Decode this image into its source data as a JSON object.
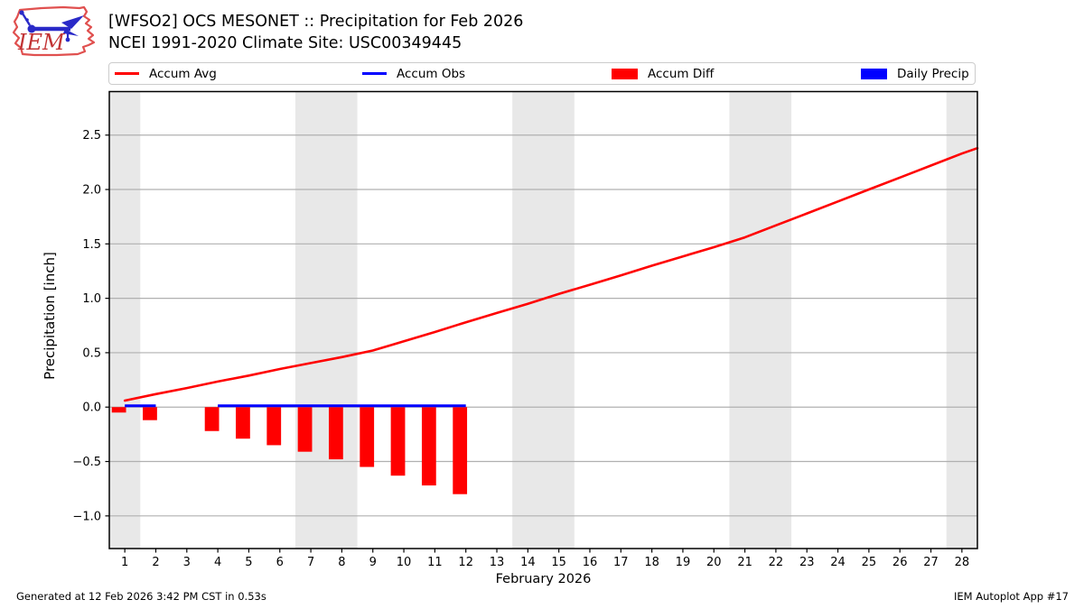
{
  "header": {
    "title_line1": "[WFSO2] OCS MESONET :: Precipitation for Feb 2026",
    "title_line2": "NCEI 1991-2020 Climate Site: USC00349445",
    "logo_text": "IEM",
    "logo_colors": {
      "outline": "#e0504f",
      "glyph": "#2a2ac8",
      "text": "#c23435"
    }
  },
  "legend": [
    {
      "label": "Accum Avg",
      "swatch": "line",
      "color": "#ff0000"
    },
    {
      "label": "Accum Obs",
      "swatch": "line",
      "color": "#0000ff"
    },
    {
      "label": "Accum Diff",
      "swatch": "patch",
      "color": "#ff0000"
    },
    {
      "label": "Daily Precip",
      "swatch": "patch",
      "color": "#0000ff"
    }
  ],
  "footer": {
    "left": "Generated at 12 Feb 2026 3:42 PM CST in 0.53s",
    "right": "IEM Autoplot App #17"
  },
  "chart_data": {
    "type": "line+bar",
    "title": "",
    "xlabel": "February 2026",
    "ylabel": "Precipitation [inch]",
    "xlim": [
      0.5,
      28.5
    ],
    "ylim": [
      -1.3,
      2.9
    ],
    "x_ticks": [
      1,
      2,
      3,
      4,
      5,
      6,
      7,
      8,
      9,
      10,
      11,
      12,
      13,
      14,
      15,
      16,
      17,
      18,
      19,
      20,
      21,
      22,
      23,
      24,
      25,
      26,
      27,
      28
    ],
    "y_ticks": [
      -1.0,
      -0.5,
      0.0,
      0.5,
      1.0,
      1.5,
      2.0,
      2.5
    ],
    "grid": true,
    "legend_position": "top",
    "weekend_bands": [
      [
        0.5,
        1.5
      ],
      [
        6.5,
        8.5
      ],
      [
        13.5,
        15.5
      ],
      [
        20.5,
        22.5
      ],
      [
        27.5,
        28.5
      ]
    ],
    "bar_width_days": 0.46,
    "bar_offset_days": -0.19,
    "colors": {
      "accum_avg": "#ff0000",
      "accum_obs": "#0000ff",
      "accum_diff": "#ff0000",
      "daily_precip": "#0000ff",
      "weekend_band": "#e8e8e8",
      "grid": "#b0b0b0",
      "spine": "#000000"
    },
    "series": [
      {
        "name": "Accum Avg",
        "type": "line",
        "color_key": "accum_avg",
        "x": [
          1,
          2,
          3,
          4,
          5,
          6,
          7,
          8,
          9,
          10,
          11,
          12,
          13,
          14,
          15,
          16,
          17,
          18,
          19,
          20,
          21,
          22,
          23,
          24,
          25,
          26,
          27,
          28,
          28.5
        ],
        "y": [
          0.06,
          0.12,
          0.175,
          0.235,
          0.29,
          0.35,
          0.405,
          0.46,
          0.52,
          0.605,
          0.69,
          0.78,
          0.865,
          0.95,
          1.04,
          1.125,
          1.21,
          1.3,
          1.385,
          1.47,
          1.56,
          1.67,
          1.78,
          1.89,
          2.0,
          2.11,
          2.22,
          2.33,
          2.38
        ]
      },
      {
        "name": "Accum Obs",
        "type": "line-segments",
        "color_key": "accum_obs",
        "value": 0,
        "segments": [
          [
            1,
            2
          ],
          [
            4,
            12
          ]
        ]
      },
      {
        "name": "Accum Diff",
        "type": "bar",
        "color_key": "accum_diff",
        "x": [
          1,
          2,
          4,
          5,
          6,
          7,
          8,
          9,
          10,
          11,
          12
        ],
        "y": [
          -0.05,
          -0.12,
          -0.22,
          -0.29,
          -0.35,
          -0.41,
          -0.48,
          -0.55,
          -0.63,
          -0.72,
          -0.8
        ]
      },
      {
        "name": "Daily Precip",
        "type": "bar",
        "color_key": "daily_precip",
        "x": [],
        "y": []
      }
    ]
  }
}
